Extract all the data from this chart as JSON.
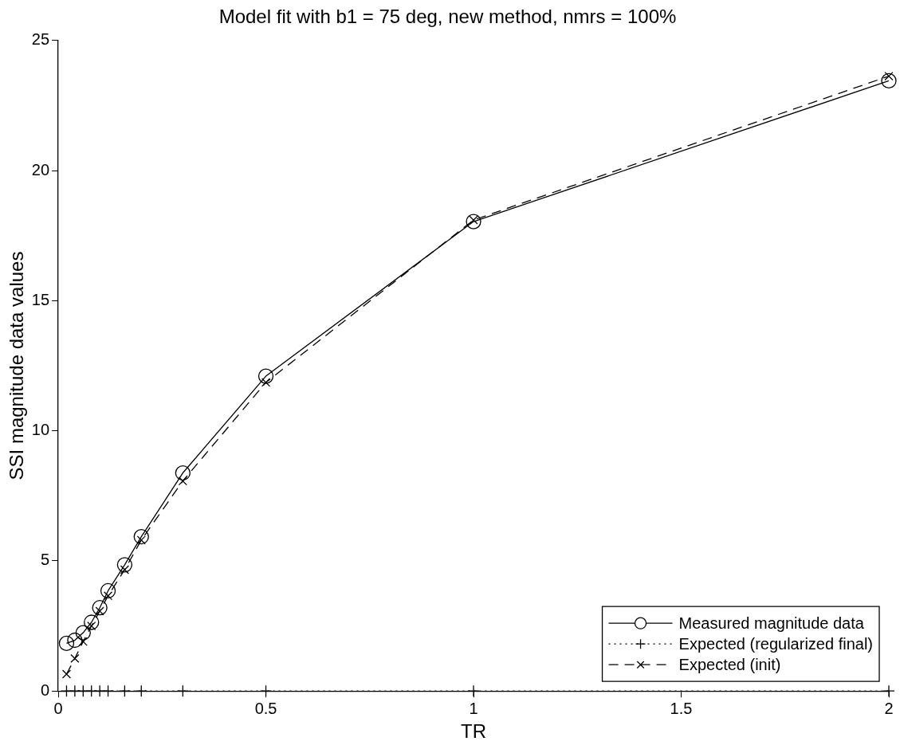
{
  "chart_data": {
    "type": "line",
    "title": "Model fit with b1 = 75 deg, new method, nmrs = 100%",
    "xlabel": "TR",
    "ylabel": "SSI magnitude data values",
    "x": [
      0.02,
      0.04,
      0.06,
      0.08,
      0.1,
      0.12,
      0.16,
      0.2,
      0.3,
      0.5,
      1,
      2
    ],
    "series": [
      {
        "name": "Measured magnitude data",
        "color": "#000000",
        "marker": "circle",
        "line_style": "solid",
        "values": [
          1.83,
          1.95,
          2.24,
          2.64,
          3.2,
          3.85,
          4.85,
          5.93,
          8.38,
          12.1,
          18.04,
          23.45
        ]
      },
      {
        "name": "Expected (regularized final)",
        "color": "#000000",
        "marker": "cross",
        "line_style": "dotted",
        "values": [
          0,
          0,
          0,
          0,
          0,
          0,
          0,
          0,
          0,
          0,
          0,
          0
        ]
      },
      {
        "name": "Expected (init)",
        "color": "#000000",
        "marker": "x",
        "line_style": "dashed",
        "values": [
          0.65,
          1.25,
          1.9,
          2.5,
          3.07,
          3.66,
          4.66,
          5.8,
          8.07,
          11.86,
          18.1,
          23.63
        ]
      }
    ],
    "xlim": [
      0,
      2
    ],
    "xticks": [
      0,
      0.5,
      1,
      1.5,
      2
    ],
    "ylim": [
      0,
      25
    ],
    "yticks": [
      0,
      5,
      10,
      15,
      20,
      25
    ],
    "grid": false,
    "legend": "bottom right"
  }
}
